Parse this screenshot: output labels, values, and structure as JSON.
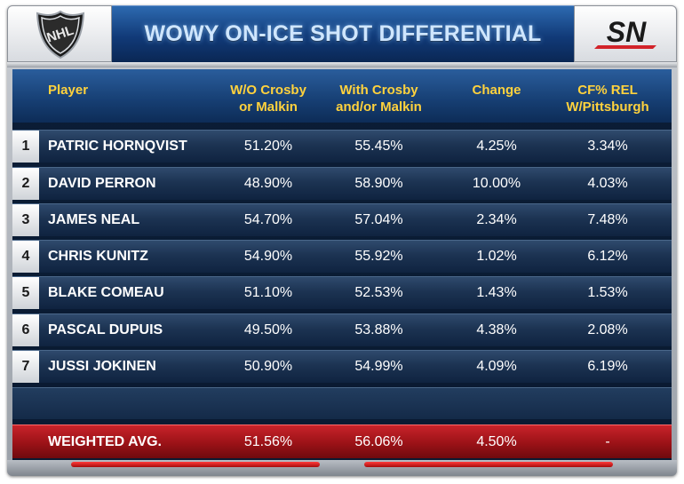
{
  "header": {
    "title": "WOWY ON-ICE SHOT DIFFERENTIAL",
    "left_logo": "NHL",
    "right_logo": "SN"
  },
  "columns": {
    "player": "Player",
    "without": "W/O Crosby\nor Malkin",
    "with": "With Crosby\nand/or Malkin",
    "change": "Change",
    "cf_rel": "CF% REL\nW/Pittsburgh"
  },
  "rows": [
    {
      "rank": "1",
      "player": "PATRIC HORNQVIST",
      "without": "51.20%",
      "with": "55.45%",
      "change": "4.25%",
      "cf_rel": "3.34%"
    },
    {
      "rank": "2",
      "player": "DAVID PERRON",
      "without": "48.90%",
      "with": "58.90%",
      "change": "10.00%",
      "cf_rel": "4.03%"
    },
    {
      "rank": "3",
      "player": "JAMES NEAL",
      "without": "54.70%",
      "with": "57.04%",
      "change": "2.34%",
      "cf_rel": "7.48%"
    },
    {
      "rank": "4",
      "player": "CHRIS KUNITZ",
      "without": "54.90%",
      "with": "55.92%",
      "change": "1.02%",
      "cf_rel": "6.12%"
    },
    {
      "rank": "5",
      "player": "BLAKE COMEAU",
      "without": "51.10%",
      "with": "52.53%",
      "change": "1.43%",
      "cf_rel": "1.53%"
    },
    {
      "rank": "6",
      "player": "PASCAL DUPUIS",
      "without": "49.50%",
      "with": "53.88%",
      "change": "4.38%",
      "cf_rel": "2.08%"
    },
    {
      "rank": "7",
      "player": "JUSSI JOKINEN",
      "without": "50.90%",
      "with": "54.99%",
      "change": "4.09%",
      "cf_rel": "6.19%"
    }
  ],
  "average": {
    "label": "WEIGHTED AVG.",
    "without": "51.56%",
    "with": "56.06%",
    "change": "4.50%",
    "cf_rel": "-"
  },
  "colors": {
    "header_text": "#ffd23d",
    "title_text": "#cfe6ff",
    "avg_row": "#b01a20"
  }
}
